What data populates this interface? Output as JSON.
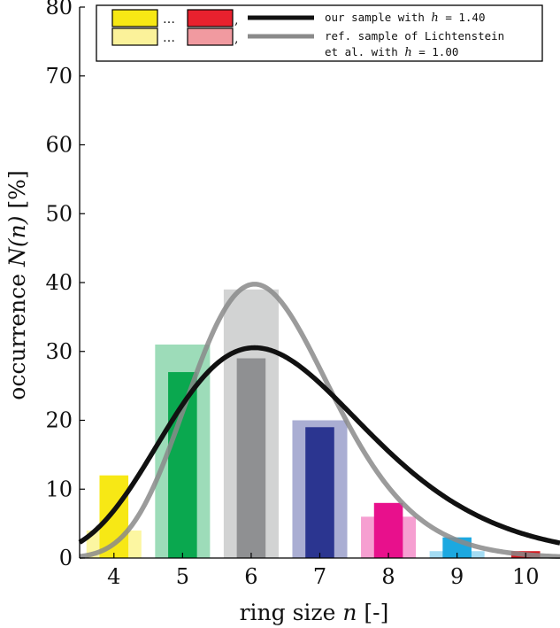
{
  "chart_data": {
    "type": "bar",
    "title": "",
    "xlabel": "ring size n [-]",
    "xlabel_parts": {
      "pre": "ring size ",
      "var": "n",
      "post": " [-]"
    },
    "ylabel": "occurrence N(n) [%]",
    "ylabel_parts": {
      "pre": "occurrence ",
      "var": "N(n)",
      "post": " [%]"
    },
    "xlim": [
      3.5,
      10.5
    ],
    "ylim": [
      0,
      80
    ],
    "x_ticks": [
      "4",
      "5",
      "6",
      "7",
      "8",
      "9",
      "10"
    ],
    "y_ticks": [
      "0",
      "10",
      "20",
      "30",
      "40",
      "50",
      "60",
      "70",
      "80"
    ],
    "grid": false,
    "legend_position": "top",
    "categories": [
      4,
      5,
      6,
      7,
      8,
      9,
      10
    ],
    "bar_colors": [
      "#f7e815",
      "#0aa84f",
      "#8f9092",
      "#2b3590",
      "#e8108c",
      "#1ca8e0",
      "#d71920"
    ],
    "series": [
      {
        "name": "our sample with h = 1.40",
        "legend_parts": {
          "pre": "our sample with ",
          "var": "h",
          "post": " = 1.40"
        },
        "bar_style": "solid",
        "values": [
          12,
          27,
          29,
          19,
          8,
          3,
          1
        ],
        "curve_color": "#111111",
        "curve": {
          "mu_ln": 1.8,
          "sigma_ln": 0.24,
          "scale": 29,
          "peak_x": 5.6
        }
      },
      {
        "name": "ref. sample of Lichtenstein et al. with h = 1.00",
        "legend_parts": {
          "line1": "ref. sample of Lichtenstein",
          "line2_pre": "et al. with ",
          "var": "h",
          "line2_post": " = 1.00"
        },
        "bar_style": "light",
        "values": [
          4,
          31,
          39,
          20,
          6,
          1,
          0
        ],
        "curve_color": "#8a8a8a",
        "curve": {
          "mu_ln": 1.8,
          "sigma_ln": 0.17,
          "scale": 39,
          "peak_x": 5.85
        }
      }
    ],
    "legend_swatches": {
      "row1": [
        "#f7e815",
        "#e8212e"
      ],
      "row2": [
        "#fbf29a",
        "#f19aa0"
      ],
      "dots": "…"
    }
  }
}
